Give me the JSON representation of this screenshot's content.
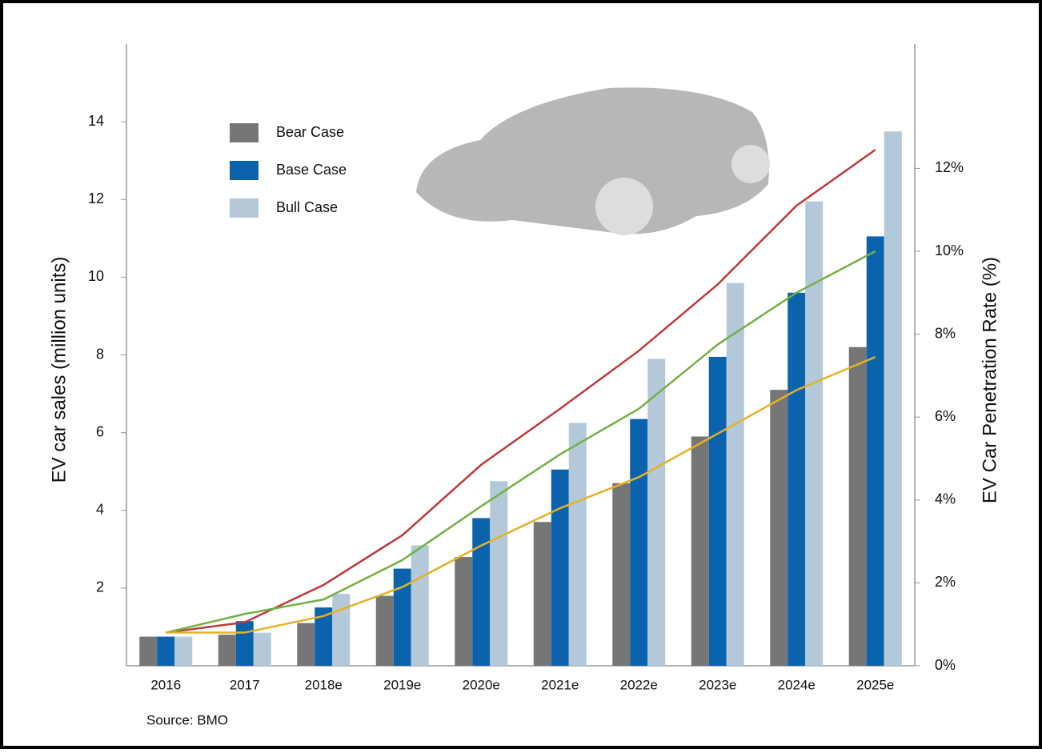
{
  "chart_data": {
    "type": "bar",
    "y_label": "EV car sales (million units)",
    "y2_label": "EV Car Penetration Rate (%)",
    "source": "Source:  BMO",
    "categories": [
      "2016",
      "2017",
      "2018e",
      "2019e",
      "2020e",
      "2021e",
      "2022e",
      "2023e",
      "2024e",
      "2025e"
    ],
    "ylim": [
      0,
      16
    ],
    "yticks": [
      2,
      4,
      6,
      8,
      10,
      12,
      14
    ],
    "y2lim": [
      0,
      15
    ],
    "y2ticks": [
      {
        "value": 0,
        "label": "0%"
      },
      {
        "value": 2,
        "label": "2%"
      },
      {
        "value": 4,
        "label": "4%"
      },
      {
        "value": 6,
        "label": "6%"
      },
      {
        "value": 8,
        "label": "8%"
      },
      {
        "value": 10,
        "label": "10%"
      },
      {
        "value": 12,
        "label": "12%"
      }
    ],
    "series": [
      {
        "name": "Bear Case",
        "color": "#767676",
        "values": [
          0.75,
          0.8,
          1.1,
          1.8,
          2.8,
          3.7,
          4.7,
          5.9,
          7.1,
          8.2
        ]
      },
      {
        "name": "Base Case",
        "color": "#0b63ad",
        "values": [
          0.75,
          1.15,
          1.5,
          2.5,
          3.8,
          5.05,
          6.35,
          7.95,
          9.6,
          11.05
        ]
      },
      {
        "name": "Bull Case",
        "color": "#b3c9da",
        "values": [
          0.75,
          0.85,
          1.85,
          3.1,
          4.75,
          6.25,
          7.9,
          9.85,
          11.95,
          13.75
        ]
      }
    ],
    "lines": [
      {
        "type": "line",
        "color": "#c0393b",
        "axis": "y2",
        "values": [
          0.8,
          1.05,
          1.95,
          3.15,
          4.85,
          6.2,
          7.6,
          9.2,
          11.1,
          12.45
        ]
      },
      {
        "type": "line",
        "color": "#72b045",
        "axis": "y2",
        "values": [
          0.8,
          1.25,
          1.6,
          2.55,
          3.85,
          5.1,
          6.2,
          7.75,
          9.0,
          10.0
        ]
      },
      {
        "type": "line",
        "color": "#e5b224",
        "axis": "y2",
        "values": [
          0.8,
          0.8,
          1.2,
          1.9,
          2.9,
          3.8,
          4.55,
          5.6,
          6.65,
          7.45
        ]
      }
    ]
  }
}
